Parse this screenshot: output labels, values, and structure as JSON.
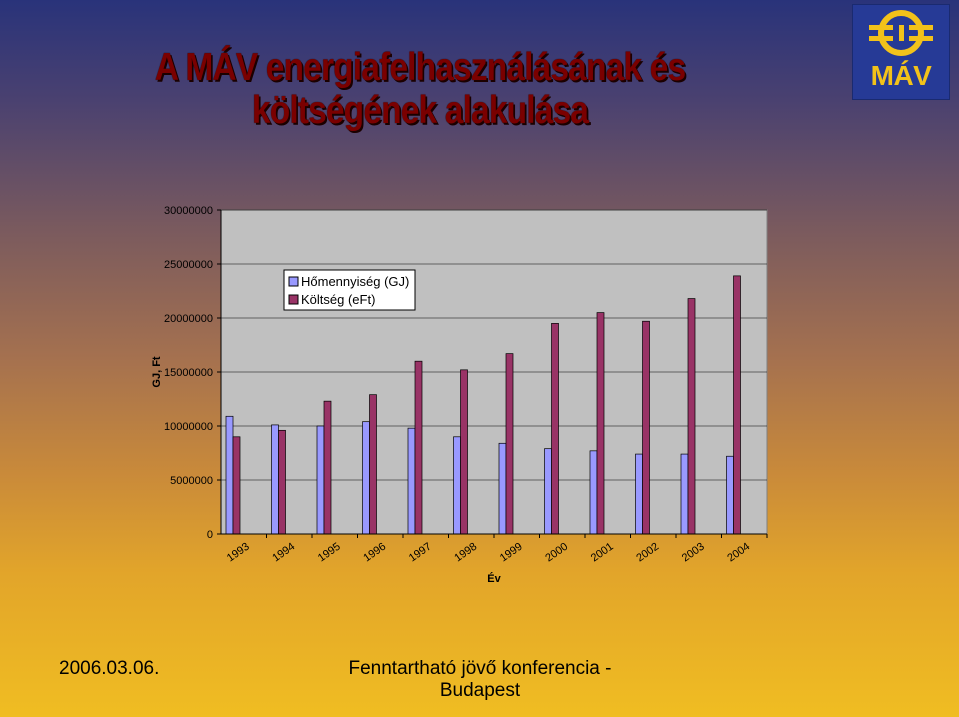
{
  "slide": {
    "title": "A MÁV energiafelhasználásának és költségének alakulása",
    "logo_text": "MÁV",
    "footer_date": "2006.03.06.",
    "footer_event": "Fenntartható jövő konferencia - Budapest"
  },
  "colors": {
    "series_1": "#9999ff",
    "series_2": "#993366",
    "plot_bg": "#c0c0c0",
    "gridline": "#000000",
    "title": "#7a0000",
    "logo_bg": "#263a96",
    "logo_accent": "#f2c21a"
  },
  "icons": {
    "logo": "mav-rail-logo-icon"
  },
  "chart_data": {
    "type": "bar",
    "title": "",
    "xlabel": "Év",
    "ylabel": "GJ, Ft",
    "ylim": [
      0,
      30000000
    ],
    "yticks": [
      0,
      5000000,
      10000000,
      15000000,
      20000000,
      25000000,
      30000000
    ],
    "grid": true,
    "legend_position": "upper-left",
    "categories": [
      "1993",
      "1994",
      "1995",
      "1996",
      "1997",
      "1998",
      "1999",
      "2000",
      "2001",
      "2002",
      "2003",
      "2004"
    ],
    "series": [
      {
        "name": "Hőmennyiség (GJ)",
        "values": [
          10900000,
          10100000,
          10000000,
          10400000,
          9800000,
          9000000,
          8400000,
          7900000,
          7700000,
          7400000,
          7400000,
          7200000
        ]
      },
      {
        "name": "Költség (eFt)",
        "values": [
          9000000,
          9600000,
          12300000,
          12900000,
          16000000,
          15200000,
          16700000,
          19500000,
          20500000,
          19700000,
          21800000,
          23900000
        ]
      }
    ]
  }
}
